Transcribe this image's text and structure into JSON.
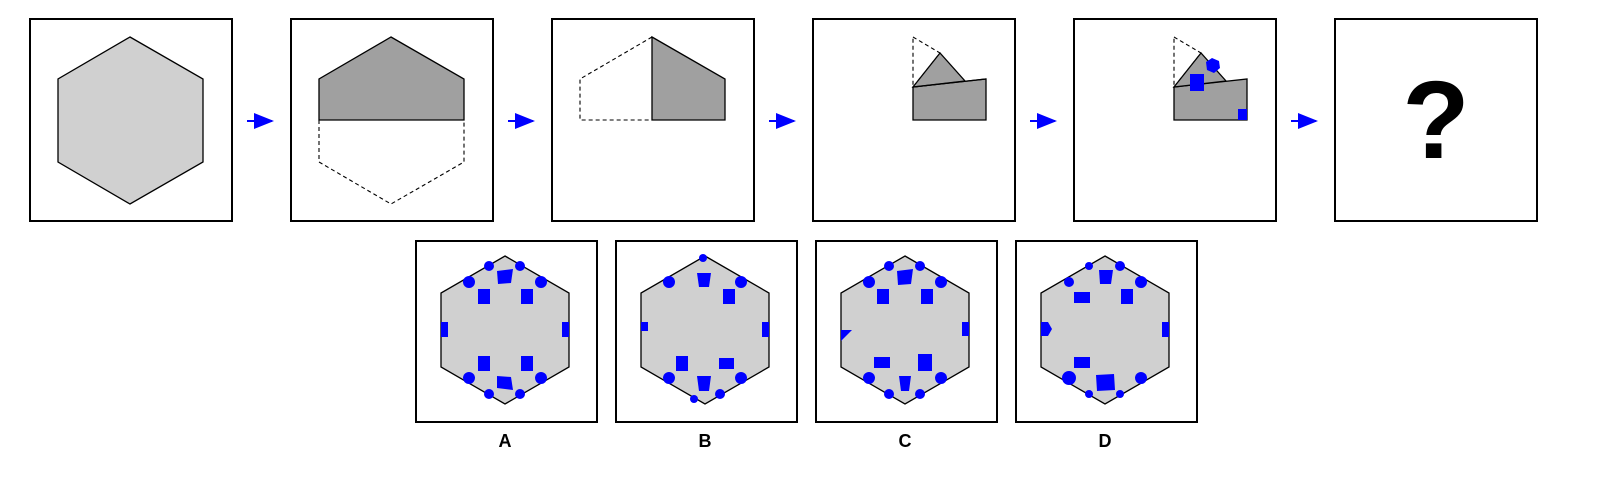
{
  "puzzle": {
    "question_mark": "?",
    "options": [
      {
        "label": "A"
      },
      {
        "label": "B"
      },
      {
        "label": "C"
      },
      {
        "label": "D"
      }
    ]
  },
  "colors": {
    "hexagon_fill": "#d0d0d0",
    "folded_fill": "#a0a0a0",
    "hole_fill": "#0000ff",
    "arrow": "#0000ff",
    "outline": "#000000"
  }
}
